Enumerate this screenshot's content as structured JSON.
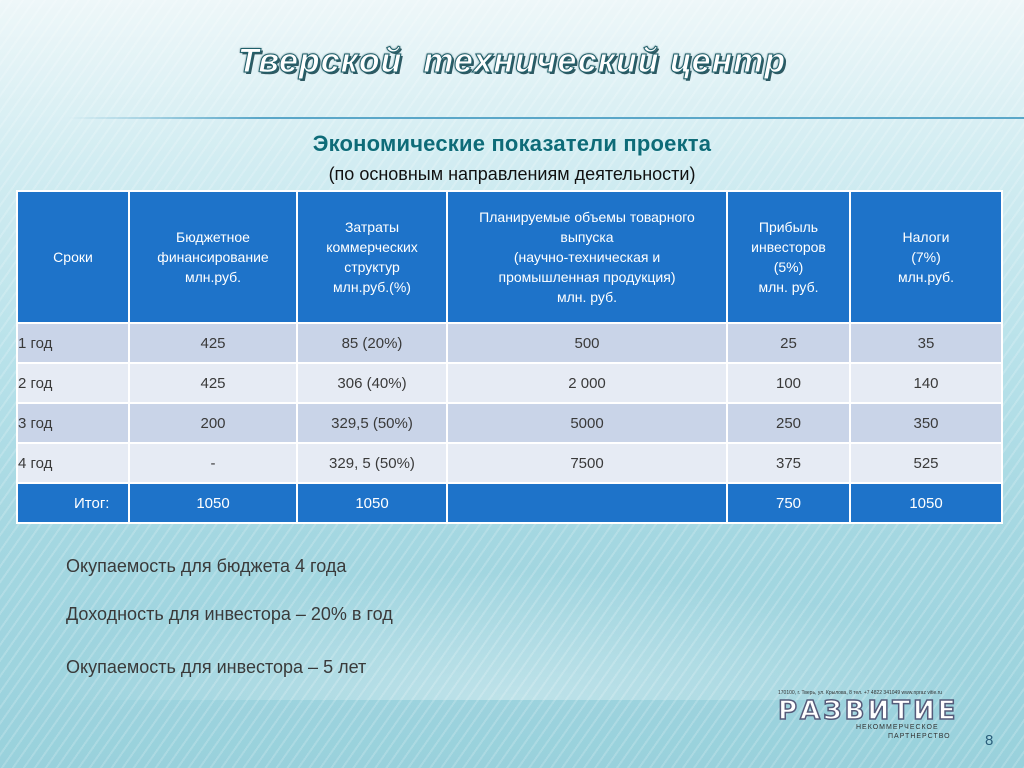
{
  "title": "Тверской  технический центр",
  "subtitle": "Экономические показатели проекта",
  "subnote": "(по основным направлениям деятельности)",
  "table": {
    "headers": [
      [
        "Сроки"
      ],
      [
        "Бюджетное",
        "финансирование",
        "млн.руб."
      ],
      [
        "Затраты",
        "коммерческих",
        "структур",
        "млн.руб.(%)"
      ],
      [
        "Планируемые объемы товарного",
        "выпуска",
        "(научно-техническая и",
        "промышленная продукция)",
        "млн. руб."
      ],
      [
        "Прибыль",
        "инвесторов",
        "(5%)",
        "млн. руб."
      ],
      [
        "Налоги",
        "(7%)",
        "млн.руб."
      ]
    ],
    "rows": [
      [
        "1 год",
        "425",
        "85  (20%)",
        "500",
        "25",
        "35"
      ],
      [
        "2 год",
        "425",
        "306  (40%)",
        "2 000",
        "100",
        "140"
      ],
      [
        "3 год",
        "200",
        "329,5 (50%)",
        "5000",
        "250",
        "350"
      ],
      [
        "4 год",
        "-",
        "329, 5 (50%)",
        "7500",
        "375",
        "525"
      ]
    ],
    "total": [
      "Итог:",
      "1050",
      "1050",
      "",
      "750",
      "1050"
    ]
  },
  "footnotes": [
    "Окупаемость для бюджета 4 года",
    "Доходность для инвестора – 20% в год",
    "Окупаемость для инвестора – 5 лет"
  ],
  "logo": {
    "address": "170100, г. Тверь, ул. Крылова, 8  тел. +7 4822 341049  www.npraz vitie.ru",
    "word": "РАЗВИТИЕ",
    "sub1": "НЕКОММЕРЧЕСКОЕ",
    "sub2": "ПАРТНЕРСТВО"
  },
  "page_number": "8"
}
